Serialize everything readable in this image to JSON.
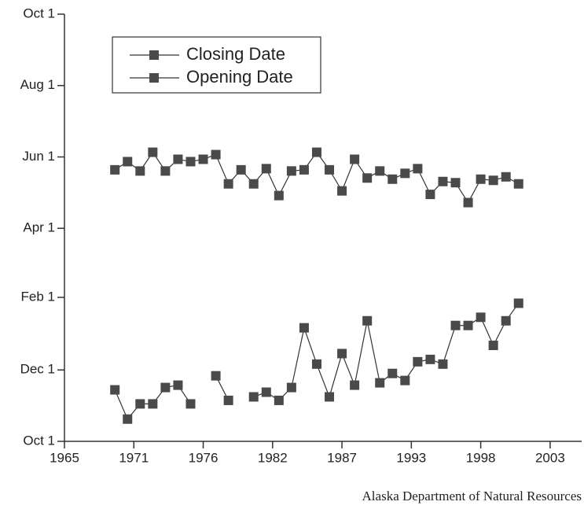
{
  "chart_data": {
    "type": "line",
    "source": "Alaska Department of Natural Resources",
    "x": [
      1969,
      1970,
      1971,
      1972,
      1973,
      1974,
      1975,
      1976,
      1977,
      1978,
      1979,
      1980,
      1981,
      1982,
      1983,
      1984,
      1985,
      1986,
      1987,
      1988,
      1989,
      1990,
      1991,
      1992,
      1993,
      1994,
      1995,
      1996,
      1997,
      1998,
      1999,
      2000,
      2001
    ],
    "series": [
      {
        "name": "Closing Date",
        "color": "#4a4a4a",
        "values": [
          232,
          239,
          231,
          247,
          231,
          241,
          239,
          241,
          245,
          220,
          232,
          220,
          233,
          210,
          231,
          232,
          247,
          232,
          214,
          241,
          225,
          231,
          224,
          229,
          233,
          211,
          222,
          221,
          204,
          224,
          223,
          226,
          220
        ]
      },
      {
        "name": "Opening Date",
        "color": "#4a4a4a",
        "values": [
          44,
          19,
          32,
          32,
          46,
          48,
          32,
          null,
          56,
          35,
          null,
          38,
          42,
          35,
          46,
          97,
          66,
          38,
          75,
          48,
          103,
          50,
          58,
          52,
          68,
          70,
          66,
          99,
          99,
          106,
          82,
          103,
          118
        ]
      }
    ],
    "xlim": [
      1965,
      2006
    ],
    "xticks": [
      1965,
      {
        "value": 1970.5,
        "label": "1971"
      },
      1976,
      {
        "value": 1981.5,
        "label": "1982"
      },
      1987,
      {
        "value": 1992.5,
        "label": "1993"
      },
      1998,
      {
        "value": 2003.5,
        "label": "2003"
      }
    ],
    "ylim": [
      0,
      365
    ],
    "yticks": [
      {
        "value": 0,
        "label": "Oct 1"
      },
      {
        "value": 61,
        "label": "Dec 1"
      },
      {
        "value": 123,
        "label": "Feb 1"
      },
      {
        "value": 182,
        "label": "Apr 1"
      },
      {
        "value": 243,
        "label": "Jun 1"
      },
      {
        "value": 304,
        "label": "Aug 1"
      },
      {
        "value": 365,
        "label": "Oct 1"
      }
    ],
    "legend": "upper left"
  }
}
